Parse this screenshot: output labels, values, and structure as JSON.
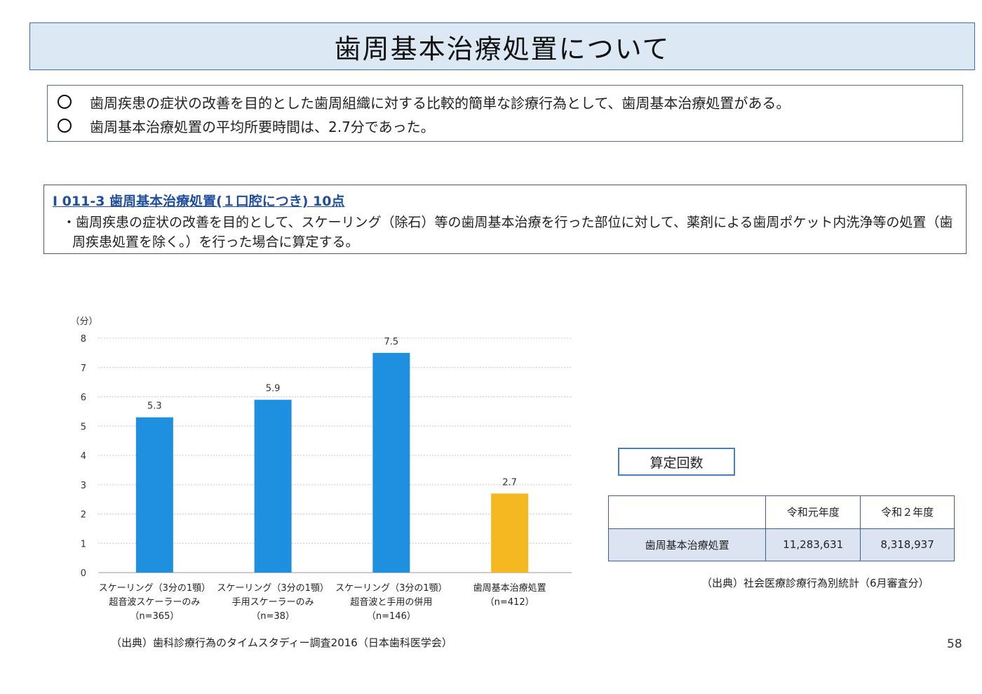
{
  "title": "歯周基本治療処置について",
  "summary": [
    "歯周疾患の症状の改善を目的とした歯周組織に対する比較的簡単な診療行為として、歯周基本治療処置がある。",
    "歯周基本治療処置の平均所要時間は、2.7分であった。"
  ],
  "rule": {
    "heading": "I 011-3 歯周基本治療処置(１口腔につき) 10点",
    "text": "・歯周疾患の症状の改善を目的として、スケーリング（除石）等の歯周基本治療を行った部位に対して、薬剤による歯周ポケット内洗浄等の処置（歯周疾患処置を除く。）を行った場合に算定する。"
  },
  "chart_data": {
    "type": "bar",
    "ylabel": "（分）",
    "ylim": [
      0,
      8
    ],
    "yticks": [
      "0",
      "1",
      "2",
      "3",
      "4",
      "5",
      "6",
      "7",
      "8"
    ],
    "categories": [
      [
        "スケーリング（3分の1顎）",
        "超音波スケーラーのみ",
        "（n=365）"
      ],
      [
        "スケーリング（3分の1顎）",
        "手用スケーラーのみ",
        "（n=38）"
      ],
      [
        "スケーリング（3分の1顎）",
        "超音波と手用の併用",
        "（n=146）"
      ],
      [
        "歯周基本治療処置",
        "（n=412）"
      ]
    ],
    "values": [
      5.3,
      5.9,
      7.5,
      2.7
    ],
    "value_labels": [
      "5.3",
      "5.9",
      "7.5",
      "2.7"
    ],
    "colors": [
      "#1f8fe0",
      "#1f8fe0",
      "#1f8fe0",
      "#f5b820"
    ],
    "grid": true
  },
  "source_left": "（出典）歯科診療行為のタイムスタディー調査2016（日本歯科医学会）",
  "count_title": "算定回数",
  "count_table": {
    "headers": [
      "",
      "令和元年度",
      "令和２年度"
    ],
    "row": [
      "歯周基本治療処置",
      "11,283,631",
      "8,318,937"
    ]
  },
  "source_right": "（出典）社会医療診療行為別統計（6月審査分）",
  "page_number": "58"
}
